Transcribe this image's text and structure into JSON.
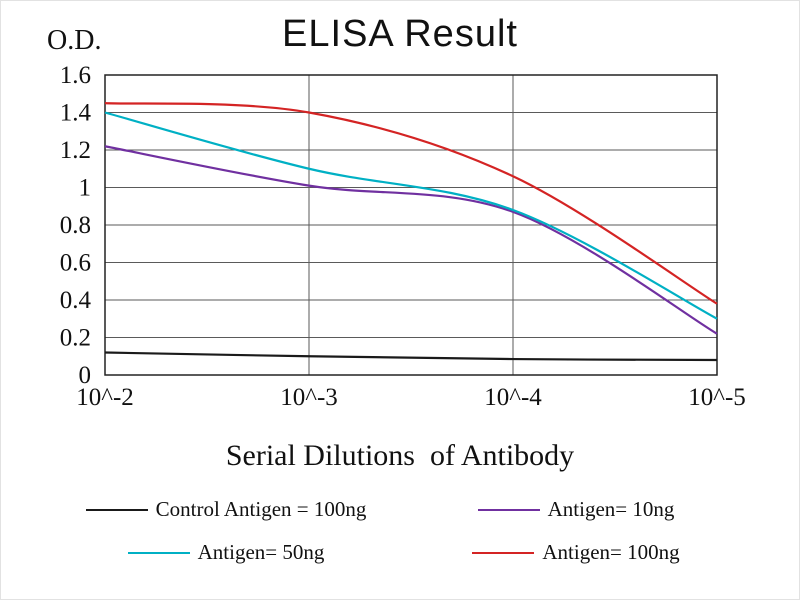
{
  "figure": {
    "background": "#ffffff",
    "grid_color": "#5a5a5a",
    "box_color": "#222222",
    "text_color": "#111111"
  },
  "chart_data": {
    "type": "line",
    "title": "ELISA Result",
    "ylabel": "O.D.",
    "xlabel": "Serial Dilutions  of Antibody",
    "x_ticks": [
      "10^-2",
      "10^-3",
      "10^-4",
      "10^-5"
    ],
    "y_ticks": [
      0,
      0.2,
      0.4,
      0.6,
      0.8,
      1,
      1.2,
      1.4,
      1.6
    ],
    "ylim": [
      0,
      1.6
    ],
    "grid": true,
    "legend_position": "bottom",
    "series": [
      {
        "name": "Control Antigen = 100ng",
        "color": "#1a1a1a",
        "values": [
          0.12,
          0.1,
          0.085,
          0.08
        ]
      },
      {
        "name": "Antigen= 10ng",
        "color": "#7030a0",
        "values": [
          1.22,
          1.01,
          0.87,
          0.22
        ]
      },
      {
        "name": "Antigen= 50ng",
        "color": "#00b0c4",
        "values": [
          1.4,
          1.1,
          0.88,
          0.3
        ]
      },
      {
        "name": "Antigen= 100ng",
        "color": "#d42424",
        "values": [
          1.45,
          1.4,
          1.06,
          0.38
        ]
      }
    ]
  }
}
